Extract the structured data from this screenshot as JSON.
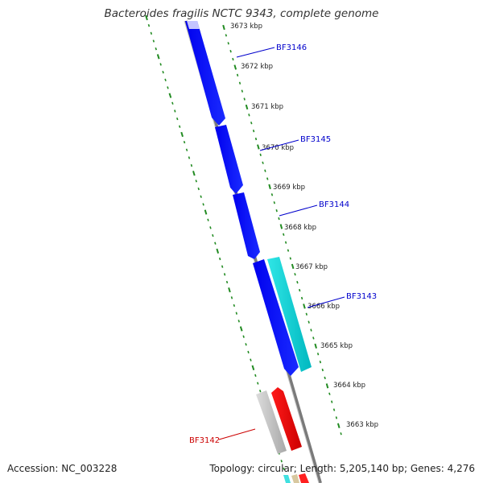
{
  "title": "Bacteroides fragilis NCTC 9343, complete genome",
  "footer": {
    "accession": "Accession: NC_003228",
    "summary": "Topology: circular; Length: 5,205,140 bp; Genes: 4,276"
  },
  "colors": {
    "backbone": "#7f7f7f",
    "ticks": "#228b22",
    "label_blue": "#0000cc",
    "label_red": "#cc0000"
  },
  "ticks": [
    "3673 kbp",
    "3672 kbp",
    "3671 kbp",
    "3670 kbp",
    "3669 kbp",
    "3668 kbp",
    "3667 kbp",
    "3666 kbp",
    "3665 kbp",
    "3664 kbp",
    "3663 kbp"
  ],
  "gene_labels": [
    "BF3146",
    "BF3145",
    "BF3144",
    "BF3143",
    "BF3142"
  ]
}
